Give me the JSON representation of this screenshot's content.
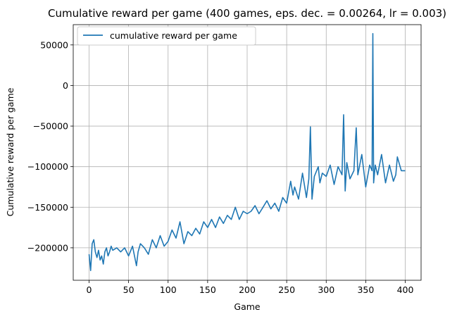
{
  "chart_data": {
    "type": "line",
    "title": "Cumulative reward per game (400 games, eps. dec. = 0.00264, lr = 0.003)",
    "xlabel": "Game",
    "ylabel": "Cumulative reward per game",
    "xlim": [
      -20,
      420
    ],
    "ylim": [
      -240000,
      75000
    ],
    "xticks": [
      0,
      50,
      100,
      150,
      200,
      250,
      300,
      350,
      400
    ],
    "yticks": [
      -200000,
      -150000,
      -100000,
      -50000,
      0,
      50000
    ],
    "xtick_labels": [
      "0",
      "50",
      "100",
      "150",
      "200",
      "250",
      "300",
      "350",
      "400"
    ],
    "ytick_labels": [
      "−200000",
      "−150000",
      "−100000",
      "−50000",
      "0",
      "50000"
    ],
    "grid": true,
    "legend_position": "top-left",
    "series": [
      {
        "name": "cumulative reward per game",
        "color": "#1f77b4",
        "x": [
          0,
          2,
          4,
          6,
          8,
          10,
          12,
          14,
          16,
          18,
          20,
          22,
          24,
          26,
          28,
          30,
          35,
          40,
          45,
          50,
          55,
          60,
          62,
          65,
          70,
          75,
          80,
          85,
          90,
          95,
          100,
          105,
          110,
          115,
          120,
          125,
          130,
          135,
          140,
          145,
          150,
          155,
          160,
          165,
          170,
          175,
          180,
          185,
          190,
          195,
          200,
          205,
          210,
          215,
          220,
          225,
          230,
          235,
          240,
          245,
          250,
          255,
          258,
          260,
          265,
          270,
          275,
          278,
          280,
          282,
          285,
          290,
          292,
          295,
          300,
          305,
          310,
          315,
          320,
          322,
          324,
          326,
          330,
          335,
          338,
          340,
          345,
          350,
          355,
          358,
          359,
          360,
          362,
          365,
          370,
          375,
          380,
          385,
          388,
          390,
          395,
          400
        ],
        "y": [
          -208000,
          -228000,
          -195000,
          -190000,
          -205000,
          -212000,
          -203000,
          -215000,
          -210000,
          -220000,
          -205000,
          -200000,
          -210000,
          -205000,
          -198000,
          -203000,
          -200000,
          -205000,
          -200000,
          -210000,
          -198000,
          -222000,
          -205000,
          -195000,
          -200000,
          -208000,
          -190000,
          -200000,
          -185000,
          -198000,
          -192000,
          -178000,
          -188000,
          -168000,
          -195000,
          -180000,
          -185000,
          -176000,
          -183000,
          -168000,
          -175000,
          -165000,
          -175000,
          -162000,
          -170000,
          -160000,
          -165000,
          -150000,
          -165000,
          -155000,
          -158000,
          -155000,
          -148000,
          -158000,
          -150000,
          -142000,
          -152000,
          -145000,
          -155000,
          -138000,
          -145000,
          -118000,
          -135000,
          -125000,
          -140000,
          -108000,
          -138000,
          -115000,
          -51000,
          -140000,
          -112000,
          -100000,
          -120000,
          -108000,
          -112000,
          -98000,
          -122000,
          -100000,
          -110000,
          -36000,
          -130000,
          -95000,
          -115000,
          -105000,
          -52000,
          -110000,
          -85000,
          -125000,
          -98000,
          -105000,
          64000,
          -120000,
          -98000,
          -110000,
          -85000,
          -120000,
          -98000,
          -118000,
          -110000,
          -88000,
          -105000,
          -105000
        ]
      }
    ]
  }
}
